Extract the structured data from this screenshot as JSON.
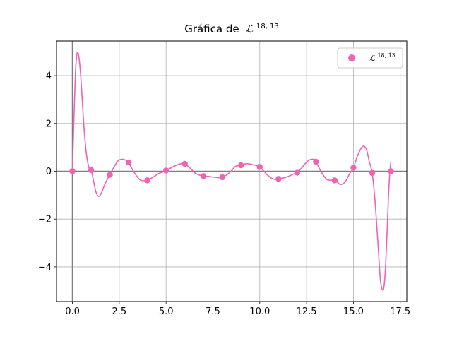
{
  "chart_data": {
    "type": "line",
    "title": "Gráfica de",
    "title_symbol": "ℒ",
    "title_superscript": "18, 13",
    "legend": {
      "symbol": "ℒ",
      "superscript": "18, 13",
      "placement": "upper right"
    },
    "xlim": [
      -0.85,
      17.85
    ],
    "ylim": [
      -5.45,
      5.45
    ],
    "x_ticks": [
      0.0,
      2.5,
      5.0,
      7.5,
      10.0,
      12.5,
      15.0,
      17.5
    ],
    "x_tick_labels": [
      "0.0",
      "2.5",
      "5.0",
      "7.5",
      "10.0",
      "12.5",
      "15.0",
      "17.5"
    ],
    "y_ticks": [
      -4,
      -2,
      0,
      2,
      4
    ],
    "y_tick_labels": [
      "−4",
      "−2",
      "0",
      "2",
      "4"
    ],
    "grid": true,
    "color": "#f062b4",
    "axis_line_color": "#7f7f7f",
    "series": [
      {
        "kind": "points",
        "x": [
          0,
          1,
          2,
          3,
          4,
          5,
          6,
          7,
          8,
          9,
          10,
          11,
          12,
          13,
          14,
          15,
          16,
          17
        ],
        "y": [
          0.0,
          0.05,
          -0.15,
          0.37,
          -0.38,
          0.03,
          0.31,
          -0.2,
          -0.25,
          0.25,
          0.18,
          -0.32,
          -0.06,
          0.4,
          -0.38,
          0.15,
          -0.07,
          0.0
        ]
      },
      {
        "kind": "curve",
        "x": [
          0,
          0.08,
          0.15,
          0.22,
          0.3,
          0.4,
          0.5,
          0.62,
          0.75,
          0.9,
          1.0,
          1.1,
          1.25,
          1.4,
          1.55,
          1.7,
          1.85,
          2.0,
          2.2,
          2.45,
          2.7,
          2.95,
          3.0,
          3.3,
          3.6,
          3.9,
          4.0,
          4.3,
          4.6,
          5.0,
          5.4,
          5.8,
          6.0,
          6.3,
          6.6,
          7.0,
          7.3,
          7.6,
          8.0,
          8.4,
          8.7,
          9.0,
          9.3,
          9.6,
          10.0,
          10.4,
          10.7,
          11.0,
          11.4,
          11.8,
          12.0,
          12.3,
          12.6,
          12.9,
          13.0,
          13.3,
          13.6,
          14.0,
          14.3,
          14.55,
          14.8,
          15.0,
          15.2,
          15.4,
          15.55,
          15.7,
          15.85,
          16.0,
          16.15,
          16.3,
          16.45,
          16.6,
          16.7,
          16.8,
          16.88,
          16.95,
          17.0
        ],
        "y": [
          0.0,
          2.2,
          3.9,
          4.8,
          4.95,
          4.4,
          3.3,
          1.8,
          0.7,
          0.1,
          0.05,
          -0.3,
          -0.85,
          -1.05,
          -0.9,
          -0.6,
          -0.35,
          -0.15,
          0.15,
          0.45,
          0.5,
          0.42,
          0.37,
          -0.05,
          -0.35,
          -0.4,
          -0.38,
          -0.25,
          -0.1,
          0.03,
          0.2,
          0.32,
          0.31,
          0.12,
          -0.1,
          -0.2,
          -0.22,
          -0.25,
          -0.25,
          -0.05,
          0.2,
          0.25,
          0.32,
          0.28,
          0.18,
          -0.15,
          -0.32,
          -0.32,
          -0.25,
          -0.12,
          -0.06,
          0.2,
          0.45,
          0.5,
          0.4,
          -0.05,
          -0.35,
          -0.38,
          -0.55,
          -0.45,
          -0.1,
          0.15,
          0.6,
          0.95,
          1.05,
          0.9,
          0.4,
          -0.07,
          -1.2,
          -2.9,
          -4.6,
          -4.95,
          -4.2,
          -2.5,
          -0.9,
          0.0,
          0.38
        ]
      }
    ]
  }
}
